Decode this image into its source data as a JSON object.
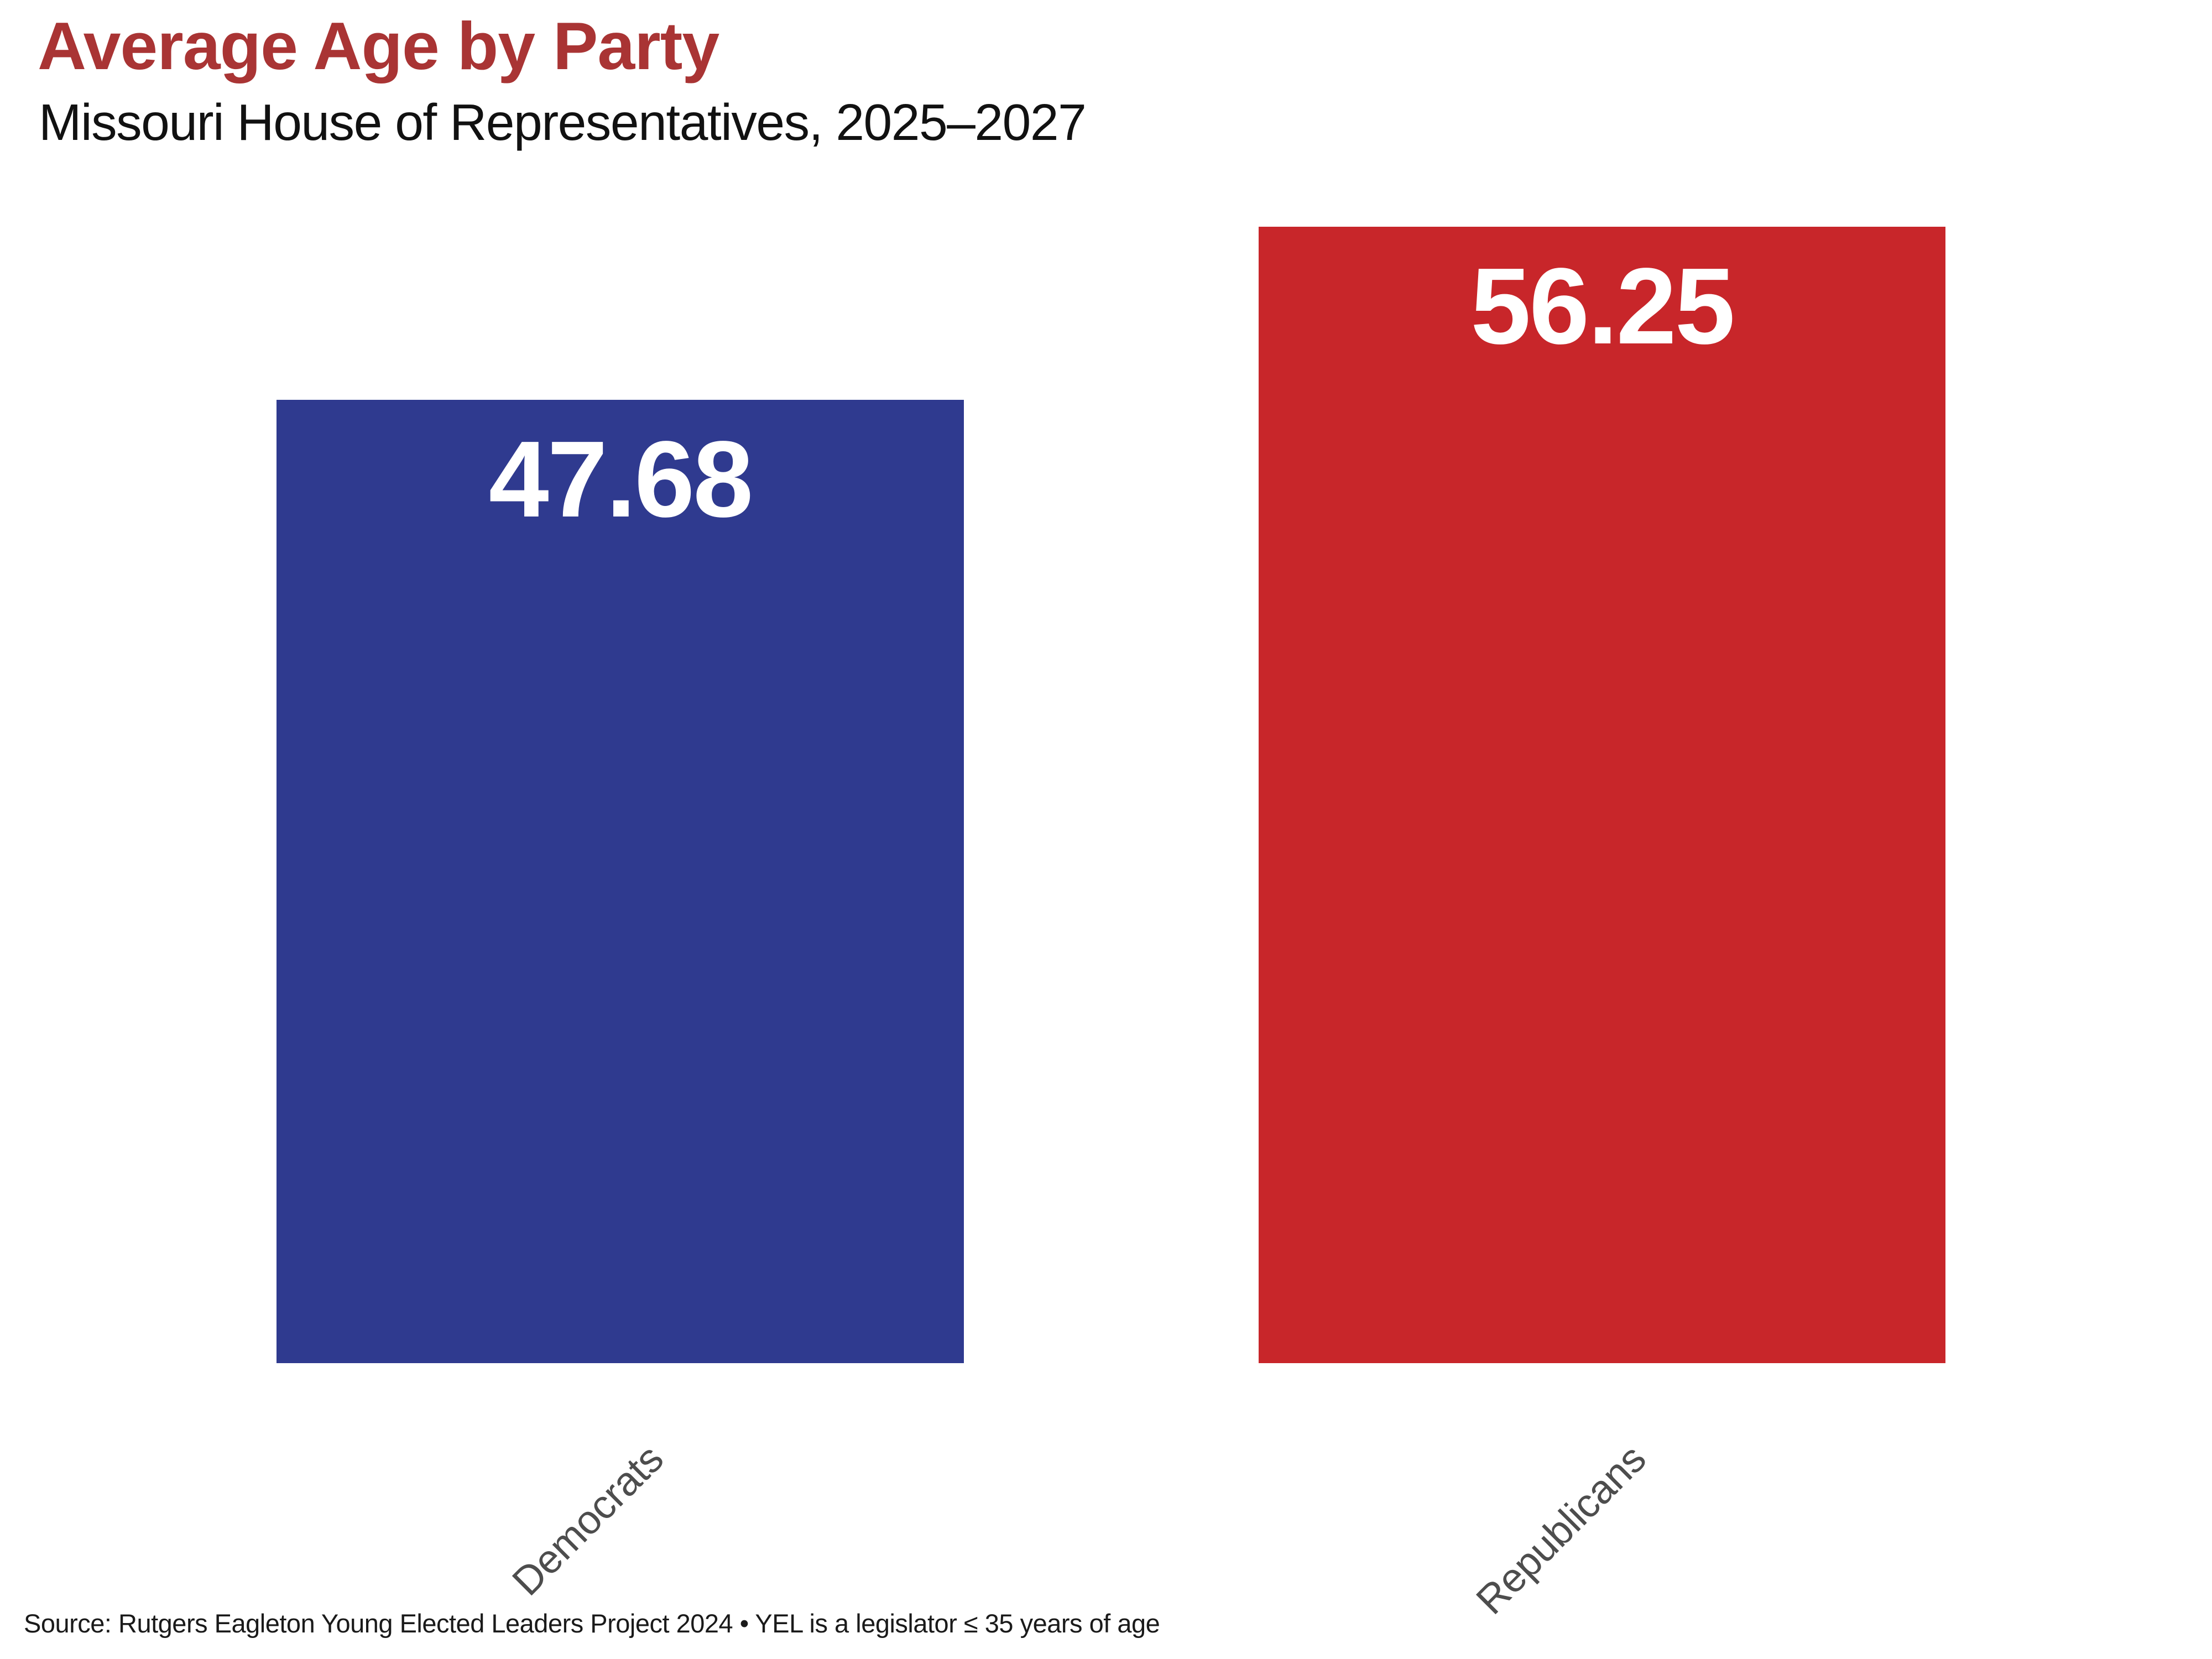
{
  "chart": {
    "title": "Average Age by Party",
    "subtitle": "Missouri House of Representatives, 2025–2027",
    "source_note": "Source: Rutgers Eagleton Young Elected Leaders Project 2024 • YEL is a legislator ≤ 35 years of age"
  },
  "chart_data": {
    "type": "bar",
    "categories": [
      "Democrats",
      "Republicans"
    ],
    "values": [
      47.68,
      56.25
    ],
    "value_labels": [
      "47.68",
      "56.25"
    ],
    "series_colors": [
      "#2F3A8F",
      "#C8262A"
    ],
    "title": "Average Age by Party",
    "subtitle": "Missouri House of Representatives, 2025–2027",
    "xlabel": "",
    "ylabel": "",
    "baseline": 0,
    "grid": false,
    "legend": false,
    "value_label_position": "inside-top",
    "value_label_color": "#FFFFFF",
    "title_color": "#A93434",
    "tick_label_color": "#4D4D4D",
    "tick_label_rotation_deg": 45
  }
}
